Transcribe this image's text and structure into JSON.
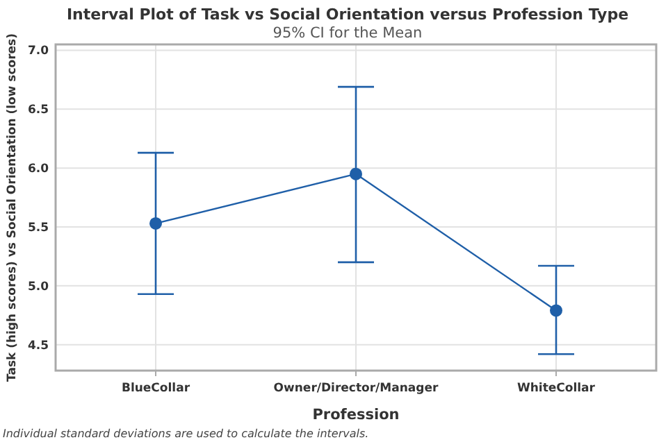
{
  "chart_data": {
    "type": "line",
    "title": "Interval Plot of Task vs Social Orientation  versus Profession Type",
    "subtitle": "95% CI for the Mean",
    "xlabel": "Profession",
    "ylabel": "Task (high scores) vs  Social Orientation (low scores)",
    "categories": [
      "BlueCollar",
      "Owner/Director/Manager",
      "WhiteCollar"
    ],
    "series": [
      {
        "color": "#1f5fa8",
        "values": [
          5.53,
          5.95,
          4.79
        ],
        "errors": [
          [
            4.93,
            6.13
          ],
          [
            5.2,
            6.69
          ],
          [
            4.42,
            5.17
          ]
        ]
      }
    ],
    "ylim": [
      4.28,
      7.05
    ],
    "yticks": [
      {
        "value": 4.5,
        "label": "4.5"
      },
      {
        "value": 5,
        "label": "5.0"
      },
      {
        "value": 5.5,
        "label": "5.5"
      },
      {
        "value": 6,
        "label": "6.0"
      },
      {
        "value": 6.5,
        "label": "6.5"
      },
      {
        "value": 7,
        "label": "7.0"
      }
    ],
    "grid": true,
    "marker": "circle",
    "line_style": "solid",
    "annotations": [
      "Individual standard deviations are used to calculate the intervals."
    ]
  }
}
